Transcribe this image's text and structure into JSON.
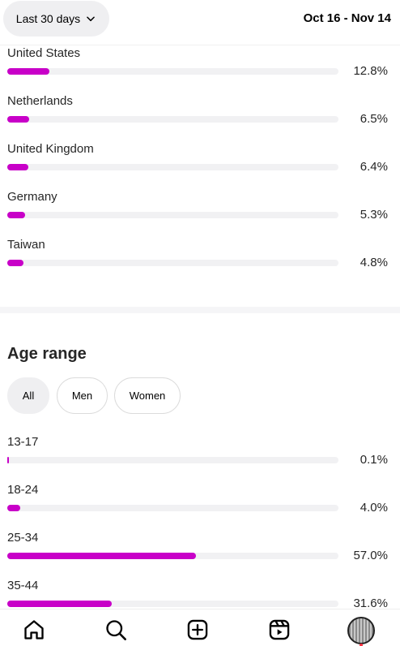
{
  "header": {
    "range_label": "Last 30 days",
    "date_range": "Oct 16 - Nov 14"
  },
  "countries": [
    {
      "name": "United States",
      "value": "12.8%",
      "fraction": 0.128
    },
    {
      "name": "Netherlands",
      "value": "6.5%",
      "fraction": 0.065
    },
    {
      "name": "United Kingdom",
      "value": "6.4%",
      "fraction": 0.064
    },
    {
      "name": "Germany",
      "value": "5.3%",
      "fraction": 0.053
    },
    {
      "name": "Taiwan",
      "value": "4.8%",
      "fraction": 0.048
    }
  ],
  "age_section": {
    "title": "Age range",
    "filters": [
      "All",
      "Men",
      "Women"
    ],
    "selected_filter": "All",
    "ranges": [
      {
        "name": "13-17",
        "value": "0.1%",
        "fraction": 0.001
      },
      {
        "name": "18-24",
        "value": "4.0%",
        "fraction": 0.04
      },
      {
        "name": "25-34",
        "value": "57.0%",
        "fraction": 0.57
      },
      {
        "name": "35-44",
        "value": "31.6%",
        "fraction": 0.316
      }
    ]
  },
  "colors": {
    "bar_fill": "#c800c8",
    "bar_track": "#f1f1f3",
    "pill_active": "#efeff1",
    "notification": "#ff3040"
  },
  "nav": {
    "icons": [
      "home-icon",
      "search-icon",
      "create-icon",
      "reels-icon",
      "profile-avatar"
    ]
  }
}
